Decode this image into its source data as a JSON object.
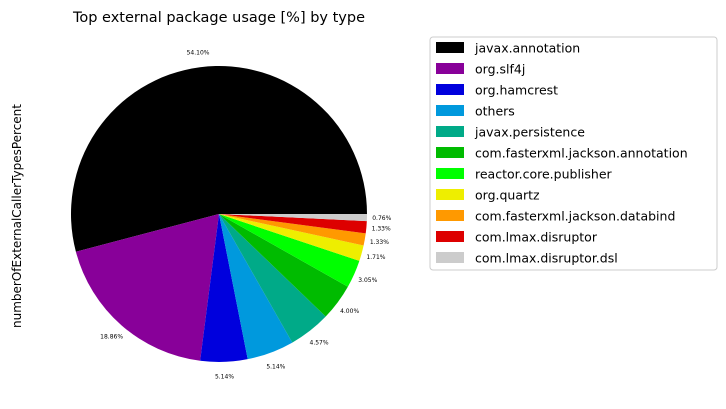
{
  "chart_data": {
    "type": "pie",
    "title": "Top external package usage [%] by type",
    "ylabel": "numberOfExternalCallerTypesPercent",
    "legend_position": "right",
    "slices": [
      {
        "label": "javax.annotation",
        "value": 54.1,
        "pct_label": "54.10%",
        "color": "#000000"
      },
      {
        "label": "org.slf4j",
        "value": 18.86,
        "pct_label": "18.86%",
        "color": "#880099"
      },
      {
        "label": "org.hamcrest",
        "value": 5.14,
        "pct_label": "5.14%",
        "color": "#0000dd"
      },
      {
        "label": "others",
        "value": 5.14,
        "pct_label": "5.14%",
        "color": "#0099dd"
      },
      {
        "label": "javax.persistence",
        "value": 4.57,
        "pct_label": "4.57%",
        "color": "#00aa88"
      },
      {
        "label": "com.fasterxml.jackson.annotation",
        "value": 4.0,
        "pct_label": "4.00%",
        "color": "#00bb00"
      },
      {
        "label": "reactor.core.publisher",
        "value": 3.05,
        "pct_label": "3.05%",
        "color": "#00ff00"
      },
      {
        "label": "org.quartz",
        "value": 1.71,
        "pct_label": "1.71%",
        "color": "#eeee00"
      },
      {
        "label": "com.fasterxml.jackson.databind",
        "value": 1.33,
        "pct_label": "1.33%",
        "color": "#ff9900"
      },
      {
        "label": "com.lmax.disruptor",
        "value": 1.33,
        "pct_label": "1.33%",
        "color": "#dd0000"
      },
      {
        "label": "com.lmax.disruptor.dsl",
        "value": 0.76,
        "pct_label": "0.76%",
        "color": "#cccccc"
      }
    ]
  }
}
